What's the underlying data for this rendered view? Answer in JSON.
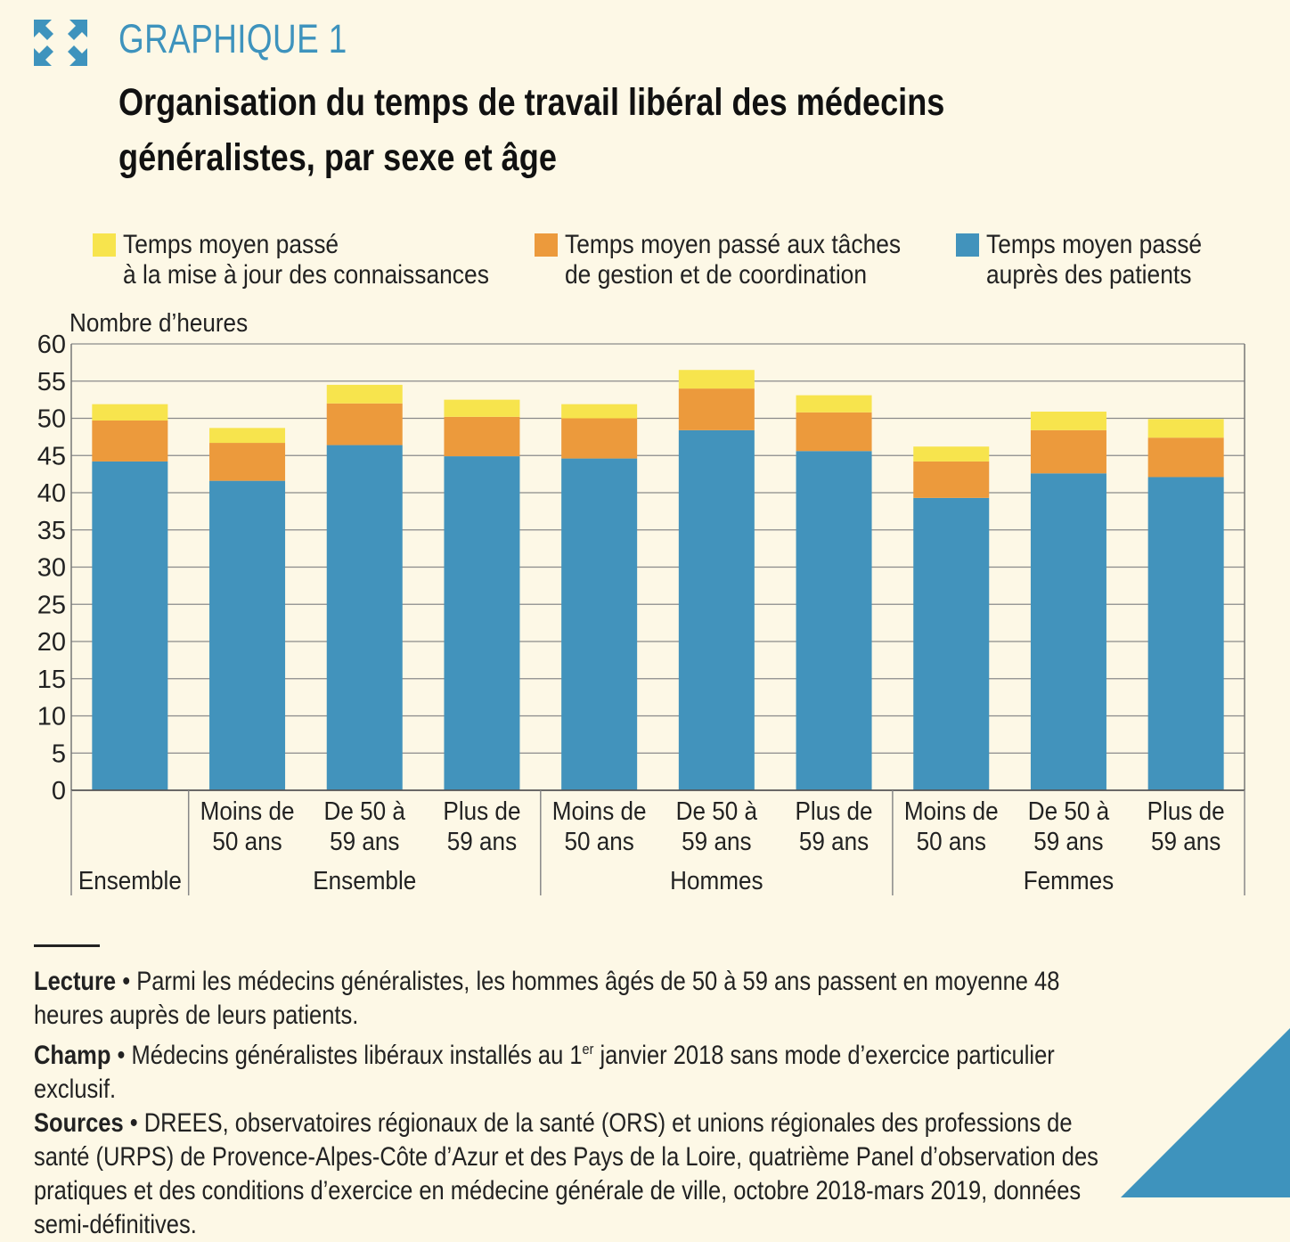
{
  "figure": {
    "label": "GRAPHIQUE 1",
    "title_lines": [
      "Organisation du temps de travail libéral des médecins",
      "généralistes, par sexe et âge"
    ]
  },
  "legend": [
    {
      "lines": [
        "Temps moyen passé",
        "à la mise à jour des connaissances"
      ],
      "color": "#f7e44d"
    },
    {
      "lines": [
        "Temps moyen passé aux tâches",
        "de gestion et de coordination"
      ],
      "color": "#ec9a3c"
    },
    {
      "lines": [
        "Temps moyen passé",
        "auprès des patients"
      ],
      "color": "#4293bc"
    }
  ],
  "chart_data": {
    "type": "bar",
    "stacked": true,
    "ylabel": "Nombre d’heures",
    "ylim": [
      0,
      60
    ],
    "yticks": [
      0,
      5,
      10,
      15,
      20,
      25,
      30,
      35,
      40,
      45,
      50,
      55,
      60
    ],
    "grid": true,
    "categories": [
      {
        "group": "Ensemble",
        "label": ""
      },
      {
        "group": "Ensemble",
        "label": "Moins de 50 ans"
      },
      {
        "group": "Ensemble",
        "label": "De 50 à 59 ans"
      },
      {
        "group": "Ensemble",
        "label": "Plus de 59 ans"
      },
      {
        "group": "Hommes",
        "label": "Moins de 50 ans"
      },
      {
        "group": "Hommes",
        "label": "De 50 à 59 ans"
      },
      {
        "group": "Hommes",
        "label": "Plus de 59 ans"
      },
      {
        "group": "Femmes",
        "label": "Moins de 50 ans"
      },
      {
        "group": "Femmes",
        "label": "De 50 à 59 ans"
      },
      {
        "group": "Femmes",
        "label": "Plus de 59 ans"
      }
    ],
    "category_label_lines": [
      [],
      [
        "Moins de",
        "50 ans"
      ],
      [
        "De 50 à",
        "59 ans"
      ],
      [
        "Plus de",
        "59 ans"
      ],
      [
        "Moins de",
        "50 ans"
      ],
      [
        "De 50 à",
        "59 ans"
      ],
      [
        "Plus de",
        "59 ans"
      ],
      [
        "Moins de",
        "50 ans"
      ],
      [
        "De 50 à",
        "59 ans"
      ],
      [
        "Plus de",
        "59 ans"
      ]
    ],
    "groups": [
      {
        "name": "Ensemble",
        "start": 0,
        "end": 0
      },
      {
        "name": "Ensemble",
        "start": 1,
        "end": 3
      },
      {
        "name": "Hommes",
        "start": 4,
        "end": 6
      },
      {
        "name": "Femmes",
        "start": 7,
        "end": 9
      }
    ],
    "series": [
      {
        "name": "Temps moyen passé auprès des patients",
        "color": "#4293bc",
        "values": [
          44.2,
          41.6,
          46.4,
          44.9,
          44.6,
          48.4,
          45.6,
          39.3,
          42.6,
          42.1
        ]
      },
      {
        "name": "Temps moyen passé aux tâches de gestion et de coordination",
        "color": "#ec9a3c",
        "values": [
          5.5,
          5.1,
          5.6,
          5.3,
          5.4,
          5.6,
          5.2,
          4.9,
          5.8,
          5.3
        ]
      },
      {
        "name": "Temps moyen passé à la mise à jour des connaissances",
        "color": "#f7e44d",
        "values": [
          2.2,
          2.0,
          2.5,
          2.3,
          1.9,
          2.5,
          2.3,
          2.0,
          2.5,
          2.5
        ]
      }
    ]
  },
  "notes": {
    "lecture_label": "Lecture",
    "lecture_text": " • Parmi les médecins généralistes, les hommes âgés de 50 à 59 ans passent en moyenne 48 heures auprès de leurs patients.",
    "champ_label": "Champ",
    "champ_text_a": " • Médecins généralistes libéraux installés au 1",
    "champ_sup": "er",
    "champ_text_b": " janvier 2018 sans mode d’exercice particulier exclusif.",
    "sources_label": "Sources",
    "sources_text": " • DREES, observatoires régionaux de la santé (ORS) et unions régionales des professions de santé (URPS) de Provence-Alpes-Côte d’Azur et des Pays de la Loire, quatrième Panel d’observation des pratiques et des conditions d’exercice en médecine générale de ville, octobre 2018-mars 2019, données semi-définitives."
  }
}
